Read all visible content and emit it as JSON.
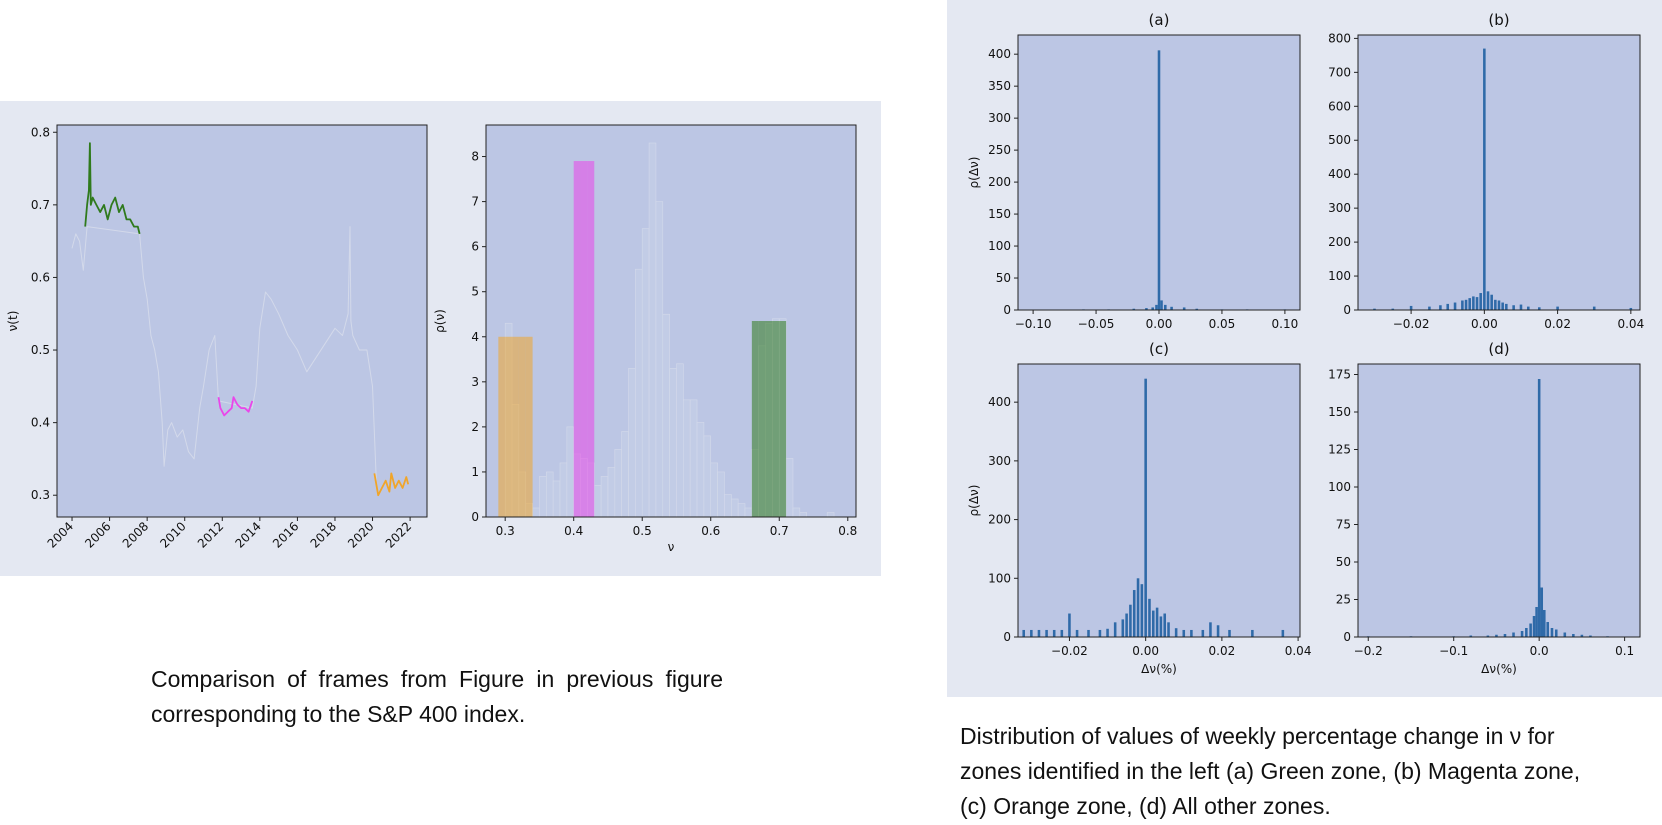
{
  "colors": {
    "panel_bg": "#e4e8f2",
    "axes_bg": "#bcc6e4",
    "green": "#2f7a1c",
    "magenta": "#ea46ea",
    "orange": "#f0a52a",
    "light_line": "#d3d9ea",
    "hist_blue": "#2f6aa8"
  },
  "chart_data": [
    {
      "id": "timeseries",
      "type": "line",
      "ylabel": "ν(t)",
      "xlabel": "",
      "xlim": [
        2003.2,
        2022.9
      ],
      "ylim": [
        0.27,
        0.81
      ],
      "xticks": [
        "2004",
        "2006",
        "2008",
        "2010",
        "2012",
        "2014",
        "2016",
        "2018",
        "2020",
        "2022"
      ],
      "yticks": [
        "0.3",
        "0.4",
        "0.5",
        "0.6",
        "0.7",
        "0.8"
      ],
      "series": [
        {
          "zone": "other",
          "color": "#d3d9ea",
          "x": [
            2004.0,
            2004.2,
            2004.4,
            2004.6,
            2004.8,
            2007.6,
            2007.8,
            2008.0,
            2008.2,
            2008.4,
            2008.6,
            2008.8,
            2008.9,
            2009.1,
            2009.3,
            2009.6,
            2009.9,
            2010.2,
            2010.5,
            2010.8,
            2011.0,
            2011.3,
            2011.6,
            2011.8,
            2013.6,
            2013.8,
            2014.0,
            2014.3,
            2014.6,
            2015.0,
            2015.5,
            2016.0,
            2016.5,
            2017.0,
            2017.5,
            2018.0,
            2018.4,
            2018.7,
            2018.8,
            2018.85,
            2018.95,
            2019.3,
            2019.7,
            2020.0,
            2020.2
          ],
          "y": [
            0.64,
            0.66,
            0.65,
            0.61,
            0.67,
            0.66,
            0.6,
            0.57,
            0.52,
            0.5,
            0.47,
            0.4,
            0.34,
            0.39,
            0.4,
            0.38,
            0.39,
            0.36,
            0.35,
            0.42,
            0.45,
            0.5,
            0.52,
            0.43,
            0.42,
            0.45,
            0.53,
            0.58,
            0.57,
            0.55,
            0.52,
            0.5,
            0.47,
            0.49,
            0.51,
            0.53,
            0.52,
            0.55,
            0.67,
            0.54,
            0.52,
            0.5,
            0.5,
            0.45,
            0.32
          ]
        },
        {
          "zone": "green",
          "color": "#2f7a1c",
          "x": [
            2004.7,
            2004.8,
            2004.9,
            2004.95,
            2005.0,
            2005.1,
            2005.3,
            2005.5,
            2005.7,
            2005.9,
            2006.1,
            2006.3,
            2006.5,
            2006.7,
            2006.9,
            2007.1,
            2007.3,
            2007.5,
            2007.6
          ],
          "y": [
            0.67,
            0.7,
            0.72,
            0.785,
            0.7,
            0.71,
            0.7,
            0.69,
            0.7,
            0.68,
            0.7,
            0.71,
            0.69,
            0.7,
            0.68,
            0.68,
            0.67,
            0.67,
            0.66
          ]
        },
        {
          "zone": "magenta",
          "color": "#ea46ea",
          "x": [
            2011.8,
            2011.9,
            2012.1,
            2012.3,
            2012.5,
            2012.6,
            2012.8,
            2013.0,
            2013.2,
            2013.4,
            2013.6
          ],
          "y": [
            0.435,
            0.42,
            0.41,
            0.415,
            0.42,
            0.435,
            0.425,
            0.42,
            0.42,
            0.415,
            0.43
          ]
        },
        {
          "zone": "orange",
          "color": "#f0a52a",
          "x": [
            2020.1,
            2020.2,
            2020.3,
            2020.5,
            2020.7,
            2020.9,
            2021.0,
            2021.2,
            2021.4,
            2021.6,
            2021.8,
            2021.9
          ],
          "y": [
            0.33,
            0.315,
            0.3,
            0.31,
            0.32,
            0.305,
            0.33,
            0.31,
            0.32,
            0.31,
            0.325,
            0.315
          ]
        }
      ]
    },
    {
      "id": "density",
      "type": "bar",
      "xlabel": "ν",
      "ylabel": "ρ(ν)",
      "xlim": [
        0.272,
        0.812
      ],
      "ylim": [
        0,
        8.7
      ],
      "xticks": [
        "0.3",
        "0.4",
        "0.5",
        "0.6",
        "0.7",
        "0.8"
      ],
      "yticks": [
        "0",
        "1",
        "2",
        "3",
        "4",
        "5",
        "6",
        "7",
        "8"
      ],
      "series": [
        {
          "zone": "other",
          "color": "#c3cde6",
          "bin_width": 0.01,
          "x": [
            0.3,
            0.31,
            0.32,
            0.33,
            0.34,
            0.35,
            0.36,
            0.37,
            0.38,
            0.39,
            0.4,
            0.41,
            0.42,
            0.43,
            0.44,
            0.45,
            0.46,
            0.47,
            0.48,
            0.49,
            0.5,
            0.51,
            0.52,
            0.53,
            0.54,
            0.55,
            0.56,
            0.57,
            0.58,
            0.59,
            0.6,
            0.61,
            0.62,
            0.63,
            0.64,
            0.65,
            0.66,
            0.67,
            0.68,
            0.69,
            0.7,
            0.71,
            0.72,
            0.73,
            0.74,
            0.77
          ],
          "values": [
            4.3,
            2.5,
            1.0,
            0.3,
            0.2,
            0.9,
            1.0,
            0.8,
            1.2,
            2.0,
            1.4,
            1.3,
            1.2,
            0.7,
            0.9,
            1.1,
            1.5,
            1.9,
            3.3,
            5.5,
            6.4,
            8.3,
            7.0,
            4.5,
            3.3,
            3.4,
            2.6,
            2.6,
            2.1,
            1.8,
            1.2,
            1.0,
            0.5,
            0.4,
            0.3,
            0.2,
            1.5,
            3.8,
            4.3,
            4.4,
            4.4,
            1.3,
            0.2,
            0.1,
            0.0,
            0.1
          ]
        },
        {
          "zone": "orange",
          "color": "#f0a52a",
          "bin_width": 0.01,
          "x": [
            0.29,
            0.3,
            0.31,
            0.32,
            0.33
          ],
          "values": [
            4.0,
            4.0,
            4.0,
            4.0,
            4.0
          ]
        },
        {
          "zone": "magenta",
          "color": "#ea46ea",
          "bin_width": 0.01,
          "x": [
            0.4,
            0.41,
            0.42
          ],
          "values": [
            7.9,
            7.9,
            7.9
          ]
        },
        {
          "zone": "green",
          "color": "#2f7a1c",
          "bin_width": 0.01,
          "x": [
            0.66,
            0.67,
            0.68,
            0.69,
            0.7
          ],
          "values": [
            4.35,
            4.35,
            4.35,
            4.35,
            4.35
          ]
        }
      ]
    },
    {
      "id": "hist-a",
      "type": "bar",
      "title": "(a)",
      "xlabel": "",
      "ylabel": "ρ(Δν)",
      "xlim": [
        -0.112,
        0.112
      ],
      "ylim": [
        0,
        430
      ],
      "xticks": [
        "−0.10",
        "−0.05",
        "0.00",
        "0.05",
        "0.10"
      ],
      "yticks": [
        "0",
        "50",
        "100",
        "150",
        "200",
        "250",
        "300",
        "350",
        "400"
      ],
      "bins": {
        "x": [
          -0.06,
          -0.04,
          -0.02,
          -0.01,
          -0.005,
          -0.002,
          0.0,
          0.002,
          0.005,
          0.01,
          0.02,
          0.03,
          0.05,
          0.07,
          0.1
        ],
        "values": [
          1,
          1,
          2,
          3,
          4,
          8,
          406,
          15,
          8,
          5,
          4,
          2,
          1,
          1,
          1
        ]
      }
    },
    {
      "id": "hist-b",
      "type": "bar",
      "title": "(b)",
      "xlabel": "",
      "ylabel": "",
      "xlim": [
        -0.0345,
        0.0425
      ],
      "ylim": [
        0,
        810
      ],
      "xticks": [
        "−0.02",
        "0.00",
        "0.02",
        "0.04"
      ],
      "yticks": [
        "0",
        "100",
        "200",
        "300",
        "400",
        "500",
        "600",
        "700",
        "800"
      ],
      "bins": {
        "x": [
          -0.03,
          -0.025,
          -0.02,
          -0.015,
          -0.012,
          -0.01,
          -0.008,
          -0.006,
          -0.005,
          -0.004,
          -0.003,
          -0.002,
          -0.001,
          0.0,
          0.001,
          0.002,
          0.003,
          0.004,
          0.005,
          0.006,
          0.008,
          0.01,
          0.012,
          0.015,
          0.02,
          0.03,
          0.04
        ],
        "values": [
          4,
          4,
          12,
          10,
          14,
          18,
          22,
          28,
          30,
          35,
          40,
          38,
          50,
          770,
          55,
          45,
          30,
          28,
          22,
          18,
          14,
          16,
          10,
          8,
          10,
          10,
          6
        ]
      }
    },
    {
      "id": "hist-c",
      "type": "bar",
      "title": "(c)",
      "xlabel": "Δν(%)",
      "ylabel": "ρ(Δν)",
      "xlim": [
        -0.0335,
        0.0405
      ],
      "ylim": [
        0,
        465
      ],
      "xticks": [
        "−0.02",
        "0.00",
        "0.02",
        "0.04"
      ],
      "yticks": [
        "0",
        "100",
        "200",
        "300",
        "400"
      ],
      "bins": {
        "x": [
          -0.032,
          -0.03,
          -0.028,
          -0.026,
          -0.024,
          -0.022,
          -0.02,
          -0.018,
          -0.015,
          -0.012,
          -0.01,
          -0.008,
          -0.006,
          -0.005,
          -0.004,
          -0.003,
          -0.002,
          -0.001,
          0.0,
          0.001,
          0.002,
          0.003,
          0.004,
          0.005,
          0.006,
          0.008,
          0.01,
          0.012,
          0.015,
          0.017,
          0.019,
          0.022,
          0.028,
          0.036
        ],
        "values": [
          12,
          12,
          12,
          12,
          12,
          12,
          40,
          12,
          12,
          12,
          14,
          25,
          30,
          40,
          55,
          80,
          100,
          90,
          440,
          65,
          45,
          50,
          35,
          40,
          25,
          15,
          12,
          12,
          12,
          25,
          20,
          12,
          12,
          12
        ]
      }
    },
    {
      "id": "hist-d",
      "type": "bar",
      "title": "(d)",
      "xlabel": "Δν(%)",
      "ylabel": "",
      "xlim": [
        -0.212,
        0.118
      ],
      "ylim": [
        0,
        182
      ],
      "xticks": [
        "−0.2",
        "−0.1",
        "0.0",
        "0.1"
      ],
      "yticks": [
        "0",
        "25",
        "50",
        "75",
        "100",
        "125",
        "150",
        "175"
      ],
      "bins": {
        "x": [
          -0.2,
          -0.15,
          -0.1,
          -0.08,
          -0.06,
          -0.05,
          -0.04,
          -0.03,
          -0.02,
          -0.015,
          -0.01,
          -0.006,
          -0.003,
          0.0,
          0.003,
          0.006,
          0.01,
          0.015,
          0.02,
          0.03,
          0.04,
          0.05,
          0.06,
          0.08
        ],
        "values": [
          0.5,
          0.5,
          0.5,
          1,
          1,
          1.5,
          2,
          3,
          4,
          6,
          9,
          14,
          20,
          172,
          33,
          18,
          10,
          6,
          5,
          3,
          2,
          1.5,
          1,
          0.5
        ]
      }
    }
  ],
  "captions": {
    "left": "Comparison of frames from Figure in previous figure corresponding to the S&P 400 index.",
    "right_line1": "Distribution of values of weekly percentage change in ν for",
    "right_line2": "zones identified in the left (a) Green zone, (b) Magenta zone,",
    "right_line3": "(c) Orange zone, (d) All other zones."
  }
}
